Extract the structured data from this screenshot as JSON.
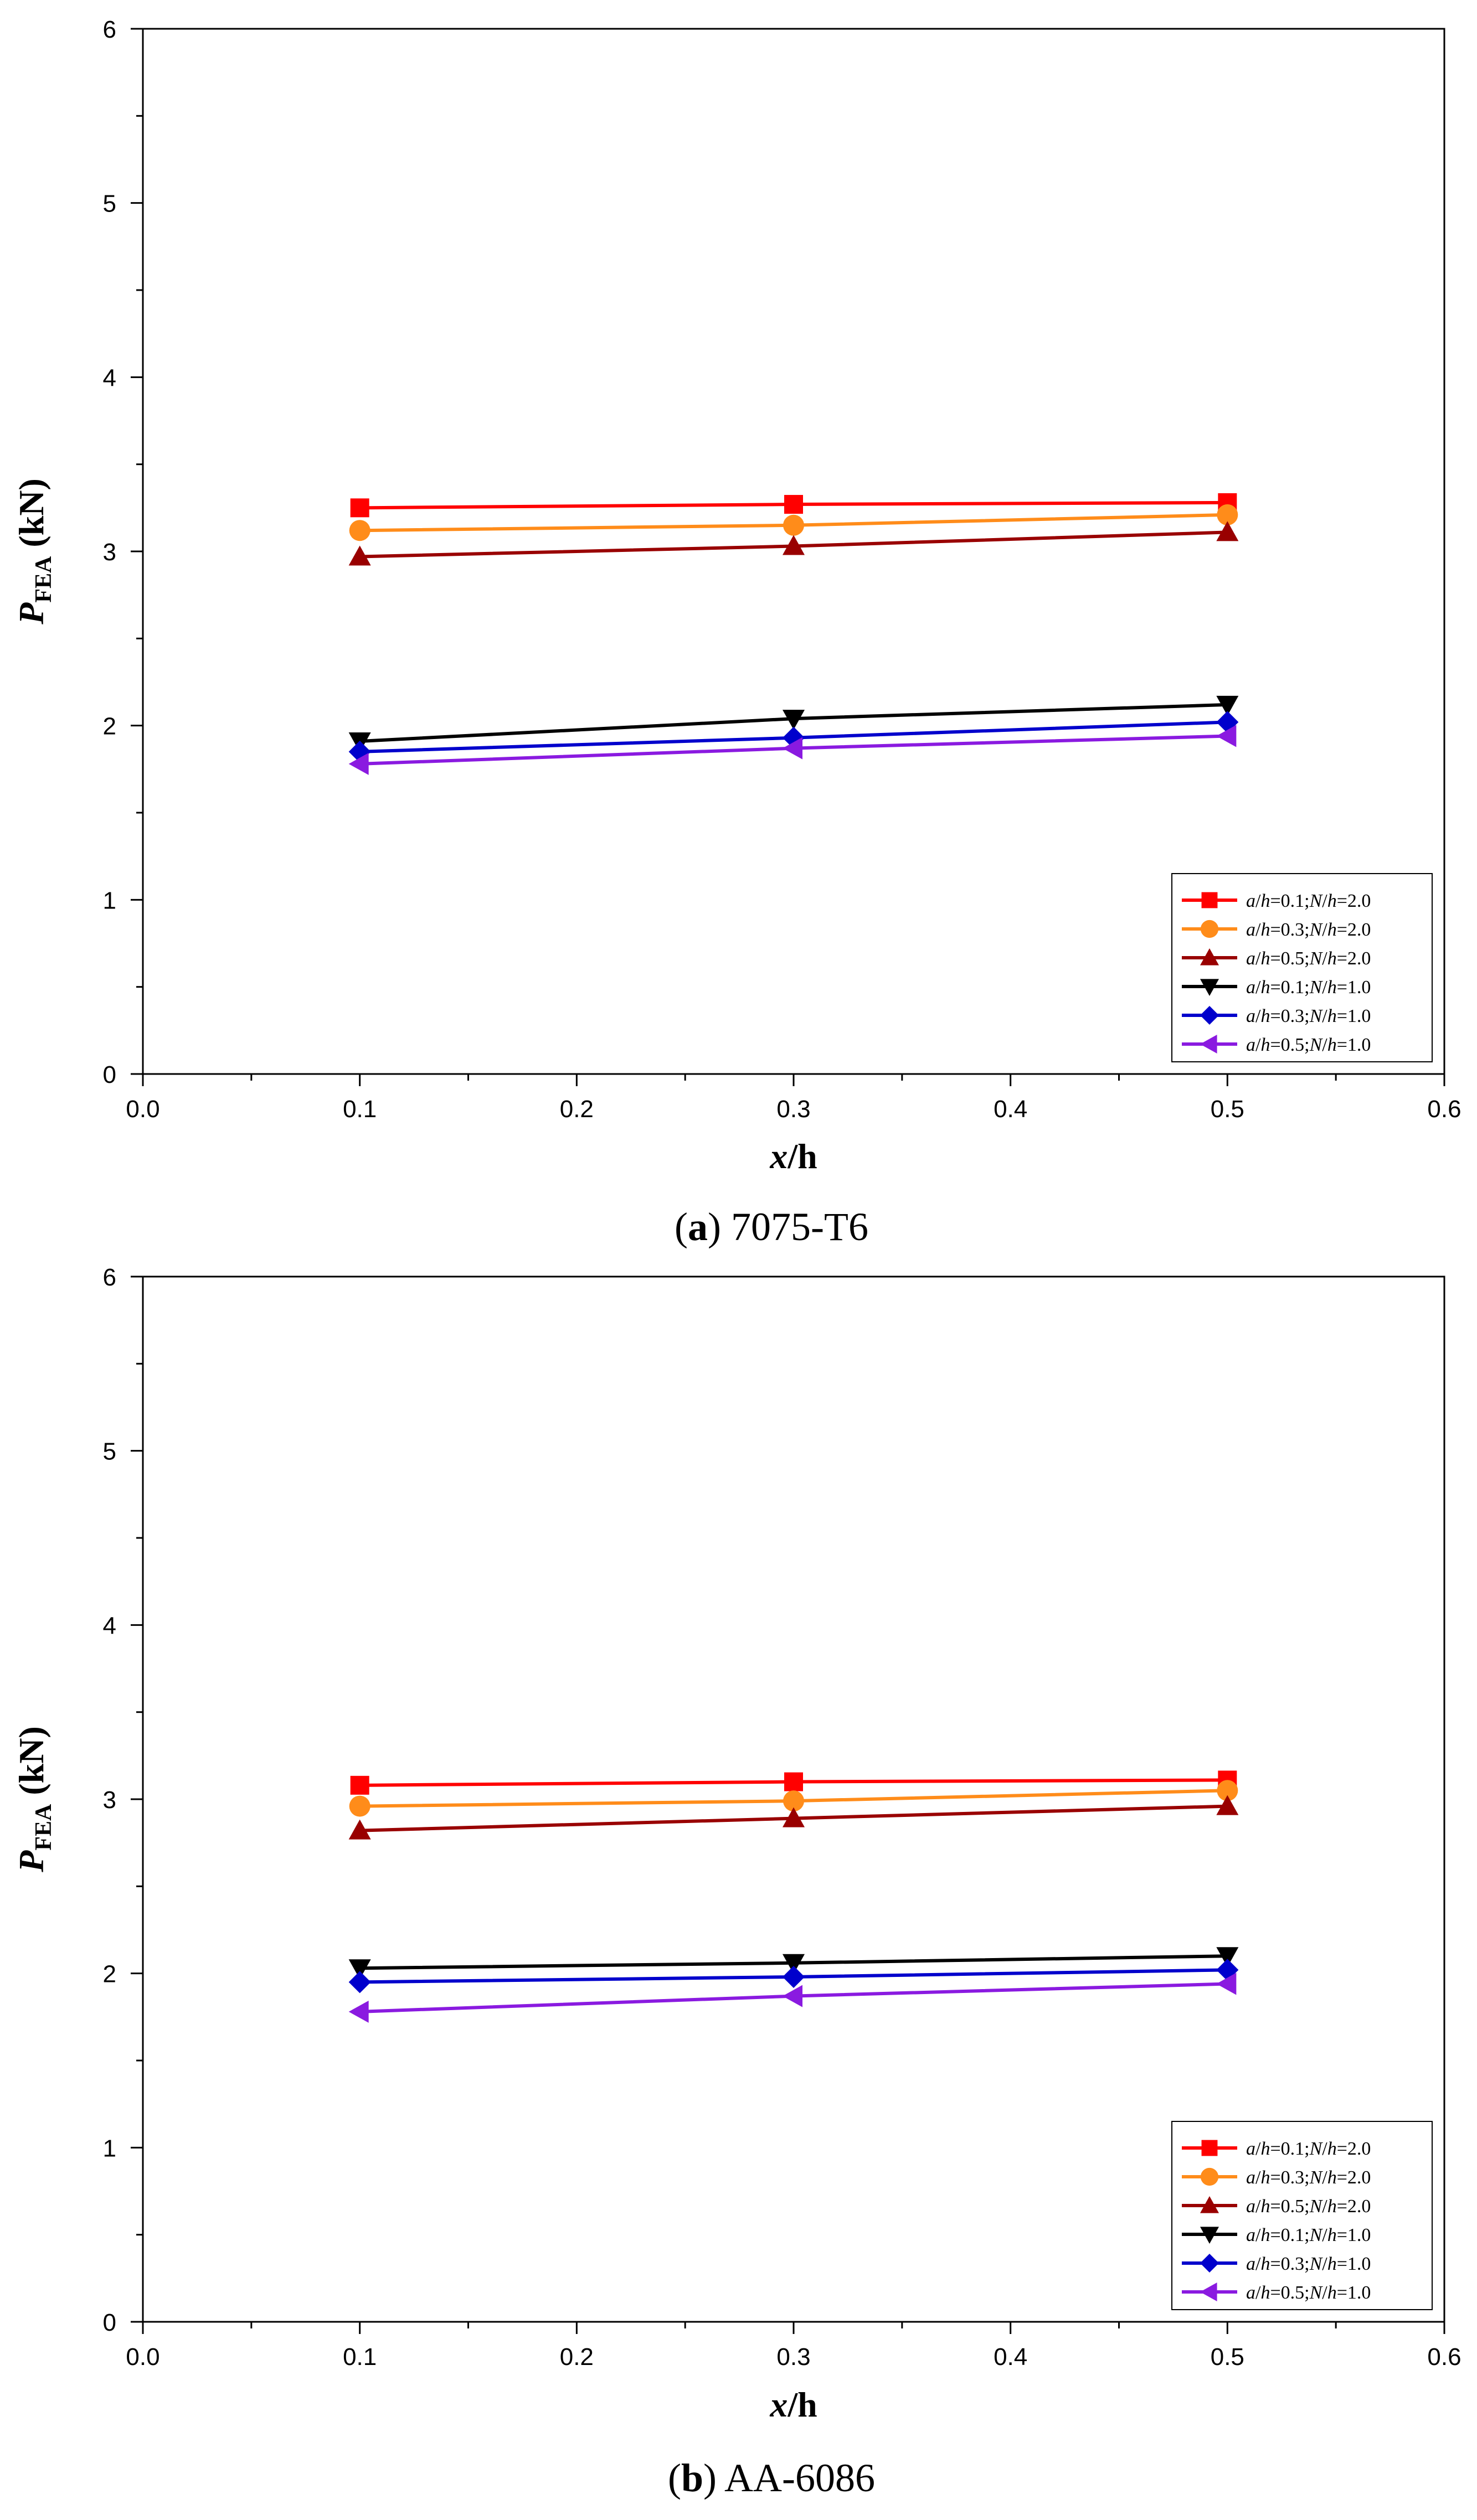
{
  "chart_data": [
    {
      "type": "line",
      "caption_letter": "a",
      "caption_text": "7075-T6",
      "xlabel_main": "x",
      "xlabel_rest": "/h",
      "ylabel_main": "P",
      "ylabel_sub": "FEA",
      "ylabel_unit": " (kN)",
      "xlim": [
        0.0,
        0.6
      ],
      "ylim": [
        0,
        6
      ],
      "x_ticks": [
        "0.0",
        "0.1",
        "0.2",
        "0.3",
        "0.4",
        "0.5",
        "0.6"
      ],
      "y_ticks": [
        "0",
        "1",
        "2",
        "3",
        "4",
        "5",
        "6"
      ],
      "legend_position": "bottom-right",
      "x": [
        0.1,
        0.3,
        0.5
      ],
      "series": [
        {
          "name": "a/h=0.1;N/h=2.0",
          "a": "0.1",
          "n": "2.0",
          "color": "#ff0000",
          "marker": "square",
          "values": [
            3.25,
            3.27,
            3.28
          ]
        },
        {
          "name": "a/h=0.3;N/h=2.0",
          "a": "0.3",
          "n": "2.0",
          "color": "#ff8c1a",
          "marker": "circle",
          "values": [
            3.12,
            3.15,
            3.21
          ]
        },
        {
          "name": "a/h=0.5;N/h=2.0",
          "a": "0.5",
          "n": "2.0",
          "color": "#990000",
          "marker": "triangle-up",
          "values": [
            2.97,
            3.03,
            3.11
          ]
        },
        {
          "name": "a/h=0.1;N/h=1.0",
          "a": "0.1",
          "n": "1.0",
          "color": "#000000",
          "marker": "triangle-down",
          "values": [
            1.91,
            2.04,
            2.12
          ]
        },
        {
          "name": "a/h=0.3;N/h=1.0",
          "a": "0.3",
          "n": "1.0",
          "color": "#0000cc",
          "marker": "diamond",
          "values": [
            1.85,
            1.93,
            2.02
          ]
        },
        {
          "name": "a/h=0.5;N/h=1.0",
          "a": "0.5",
          "n": "1.0",
          "color": "#8a1ae0",
          "marker": "triangle-left",
          "values": [
            1.78,
            1.87,
            1.94
          ]
        }
      ]
    },
    {
      "type": "line",
      "caption_letter": "b",
      "caption_text": "AA-6086",
      "xlabel_main": "x",
      "xlabel_rest": "/h",
      "ylabel_main": "P",
      "ylabel_sub": "FEA",
      "ylabel_unit": " (kN)",
      "xlim": [
        0.0,
        0.6
      ],
      "ylim": [
        0,
        6
      ],
      "x_ticks": [
        "0.0",
        "0.1",
        "0.2",
        "0.3",
        "0.4",
        "0.5",
        "0.6"
      ],
      "y_ticks": [
        "0",
        "1",
        "2",
        "3",
        "4",
        "5",
        "6"
      ],
      "legend_position": "bottom-right",
      "x": [
        0.1,
        0.3,
        0.5
      ],
      "series": [
        {
          "name": "a/h=0.1;N/h=2.0",
          "a": "0.1",
          "n": "2.0",
          "color": "#ff0000",
          "marker": "square",
          "values": [
            3.08,
            3.1,
            3.11
          ]
        },
        {
          "name": "a/h=0.3;N/h=2.0",
          "a": "0.3",
          "n": "2.0",
          "color": "#ff8c1a",
          "marker": "circle",
          "values": [
            2.96,
            2.99,
            3.05
          ]
        },
        {
          "name": "a/h=0.5;N/h=2.0",
          "a": "0.5",
          "n": "2.0",
          "color": "#990000",
          "marker": "triangle-up",
          "values": [
            2.82,
            2.89,
            2.96
          ]
        },
        {
          "name": "a/h=0.1;N/h=1.0",
          "a": "0.1",
          "n": "1.0",
          "color": "#000000",
          "marker": "triangle-down",
          "values": [
            2.03,
            2.06,
            2.1
          ]
        },
        {
          "name": "a/h=0.3;N/h=1.0",
          "a": "0.3",
          "n": "1.0",
          "color": "#0000cc",
          "marker": "diamond",
          "values": [
            1.95,
            1.98,
            2.02
          ]
        },
        {
          "name": "a/h=0.5;N/h=1.0",
          "a": "0.5",
          "n": "1.0",
          "color": "#8a1ae0",
          "marker": "triangle-left",
          "values": [
            1.78,
            1.87,
            1.94
          ]
        }
      ]
    }
  ]
}
